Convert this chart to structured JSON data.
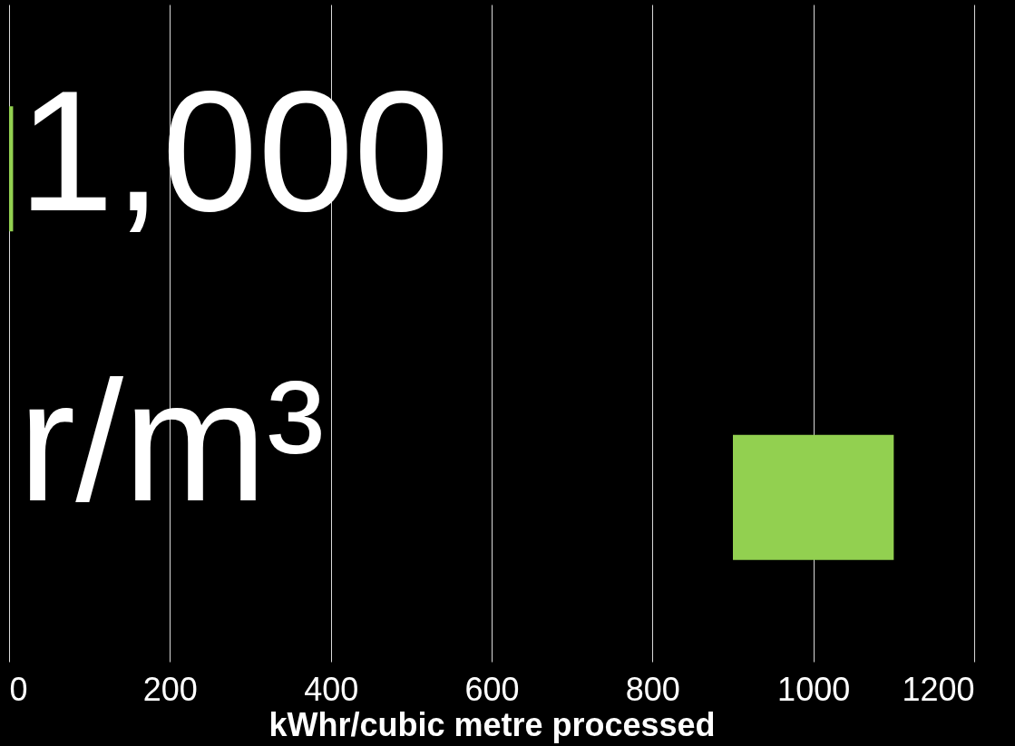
{
  "chart_data": {
    "type": "bar",
    "orientation": "horizontal",
    "xlabel": "kWhr/cubic metre processed",
    "categories": [
      null,
      null
    ],
    "values": [
      5,
      200
    ],
    "base": [
      0,
      900
    ],
    "color": "#92d050",
    "xlim": [
      0,
      1200
    ],
    "xticks": [
      0,
      200,
      400,
      600,
      800,
      1000,
      1200
    ],
    "grid": "x",
    "annotations": [
      "1,000",
      "r/m³"
    ]
  }
}
